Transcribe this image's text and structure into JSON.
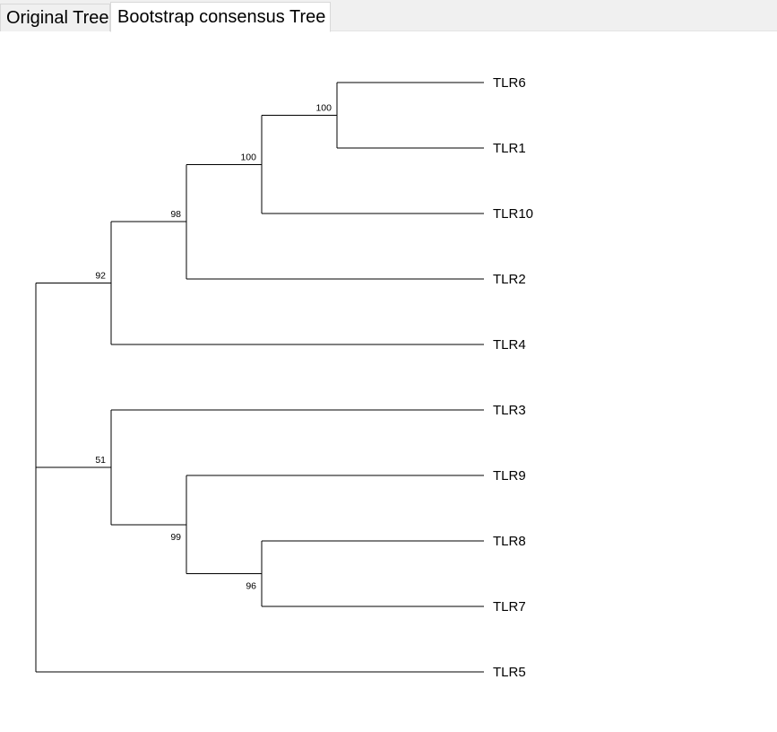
{
  "tabs": [
    {
      "label": "Original Tree",
      "active": false
    },
    {
      "label": "Bootstrap consensus Tree",
      "active": true
    }
  ],
  "tree": {
    "name": "root",
    "children": [
      {
        "support": "92",
        "children": [
          {
            "support": "98",
            "children": [
              {
                "support": "100",
                "children": [
                  {
                    "support": "100",
                    "children": [
                      {
                        "name": "TLR6"
                      },
                      {
                        "name": "TLR1"
                      }
                    ]
                  },
                  {
                    "name": "TLR10"
                  }
                ]
              },
              {
                "name": "TLR2"
              }
            ]
          },
          {
            "name": "TLR4"
          }
        ]
      },
      {
        "support": "51",
        "children": [
          {
            "name": "TLR3"
          },
          {
            "support": "99",
            "children": [
              {
                "name": "TLR9"
              },
              {
                "support": "96",
                "children": [
                  {
                    "name": "TLR8"
                  },
                  {
                    "name": "TLR7"
                  }
                ]
              }
            ]
          }
        ]
      },
      {
        "name": "TLR5"
      }
    ]
  },
  "colors": {
    "branch": "#000000",
    "tab_background": "#f0f0f0",
    "active_tab_background": "#ffffff"
  }
}
